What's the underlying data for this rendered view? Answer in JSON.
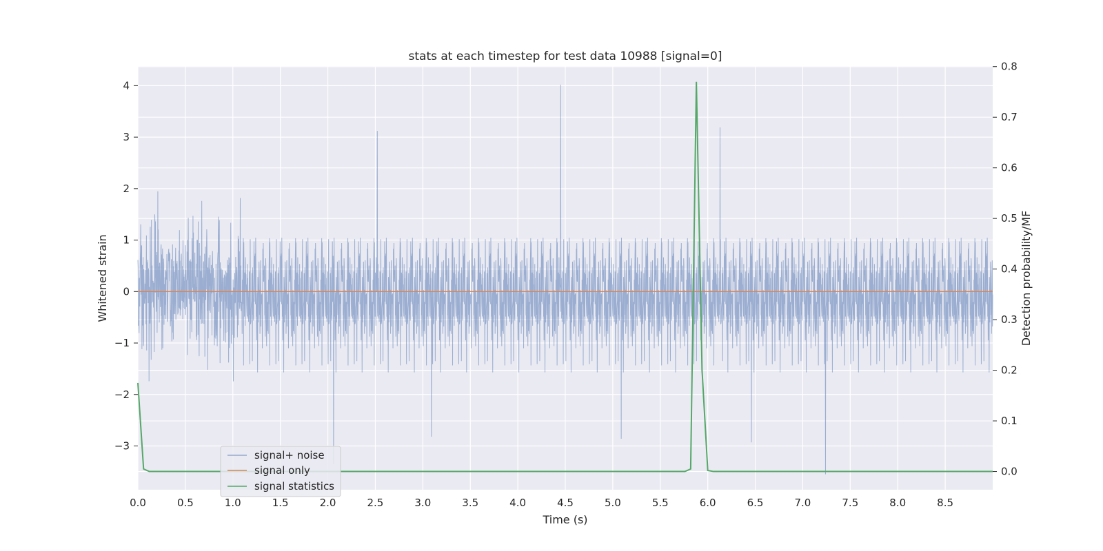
{
  "chart_data": {
    "type": "line",
    "title": "stats at each timestep for test data 10988 [signal=0]",
    "xlabel": "Time (s)",
    "ylabel": "Whitened strain",
    "y2label": "Detection probability/MF",
    "xlim": [
      0.0,
      9.0
    ],
    "ylim": [
      -3.85,
      4.38
    ],
    "y2lim": [
      -0.036,
      0.801
    ],
    "x_ticks": [
      "0.0",
      "0.5",
      "1.0",
      "1.5",
      "2.0",
      "2.5",
      "3.0",
      "3.5",
      "4.0",
      "4.5",
      "5.0",
      "5.5",
      "6.0",
      "6.5",
      "7.0",
      "7.5",
      "8.0",
      "8.5"
    ],
    "y_ticks": [
      "−3",
      "−2",
      "−1",
      "0",
      "1",
      "2",
      "3",
      "4"
    ],
    "y2_ticks": [
      "0.0",
      "0.1",
      "0.2",
      "0.3",
      "0.4",
      "0.5",
      "0.6",
      "0.7",
      "0.8"
    ],
    "grid": true,
    "legend_position": "lower-left",
    "series": [
      {
        "name": "signal+ noise",
        "axis": "left",
        "color": "#4c72b0",
        "note_kind": "noise",
        "amplitude_sd": 0.62,
        "peaks": [
          [
            4.45,
            4.02
          ],
          [
            2.52,
            3.12
          ],
          [
            6.13,
            3.19
          ],
          [
            2.06,
            -3.35
          ],
          [
            7.24,
            -3.55
          ],
          [
            5.09,
            -2.86
          ],
          [
            3.09,
            -2.82
          ],
          [
            6.46,
            -2.93
          ]
        ]
      },
      {
        "name": "signal only",
        "axis": "left",
        "color": "#dd8452",
        "x": [
          0.0,
          9.0
        ],
        "y": [
          0.0,
          0.0
        ]
      },
      {
        "name": "signal statistics",
        "axis": "right",
        "color": "#55a868",
        "x": [
          0.0,
          0.06,
          0.12,
          0.18,
          5.76,
          5.82,
          5.88,
          5.94,
          6.0,
          6.06,
          9.0
        ],
        "y": [
          0.175,
          0.005,
          0.0,
          0.0,
          0.0,
          0.005,
          0.77,
          0.2,
          0.002,
          0.0,
          0.0
        ]
      }
    ]
  }
}
